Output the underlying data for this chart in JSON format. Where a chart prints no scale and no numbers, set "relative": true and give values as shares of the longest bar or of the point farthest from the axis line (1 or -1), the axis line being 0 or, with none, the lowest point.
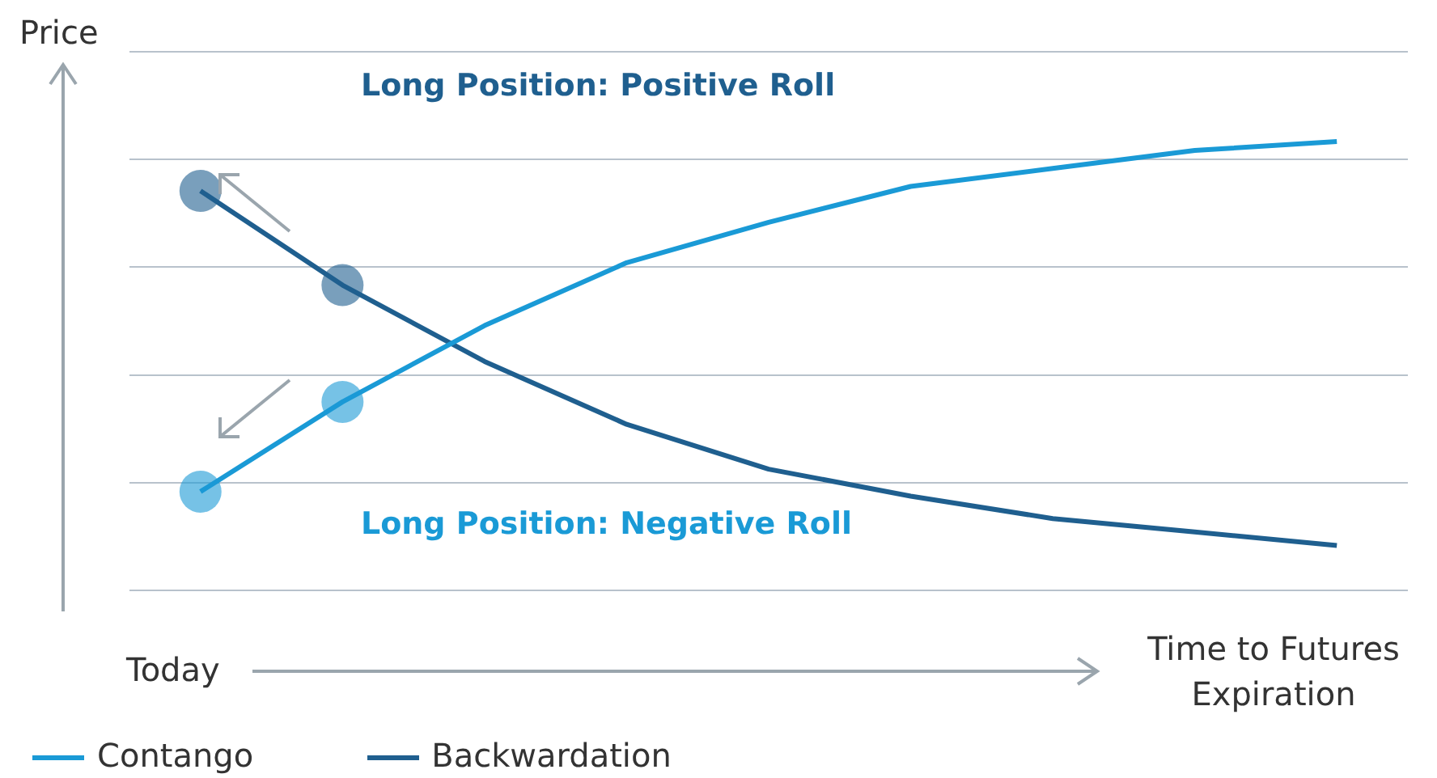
{
  "chart_data": {
    "type": "line",
    "relative": true,
    "ylabel": "Price",
    "xlabel": "Time to Futures Expiration",
    "categories": [
      null,
      null,
      null,
      null,
      null,
      null,
      null,
      null,
      null
    ],
    "series": [
      {
        "name": "Contango",
        "color": "#1a9ad6",
        "values": [
          0.22,
          0.42,
          0.59,
          0.73,
          0.82,
          0.9,
          0.94,
          0.98,
          1
        ]
      },
      {
        "name": "Backwardation",
        "color": "#1f5f8f",
        "values": [
          0.89,
          0.68,
          0.51,
          0.37,
          0.27,
          0.21,
          0.16,
          0.13,
          0.1
        ]
      }
    ],
    "annotations": [
      "Long Position: Positive Roll",
      "Long Position: Negative Roll",
      "Today"
    ],
    "grid": "y",
    "legend": "bottom left",
    "tick_labels": false
  }
}
